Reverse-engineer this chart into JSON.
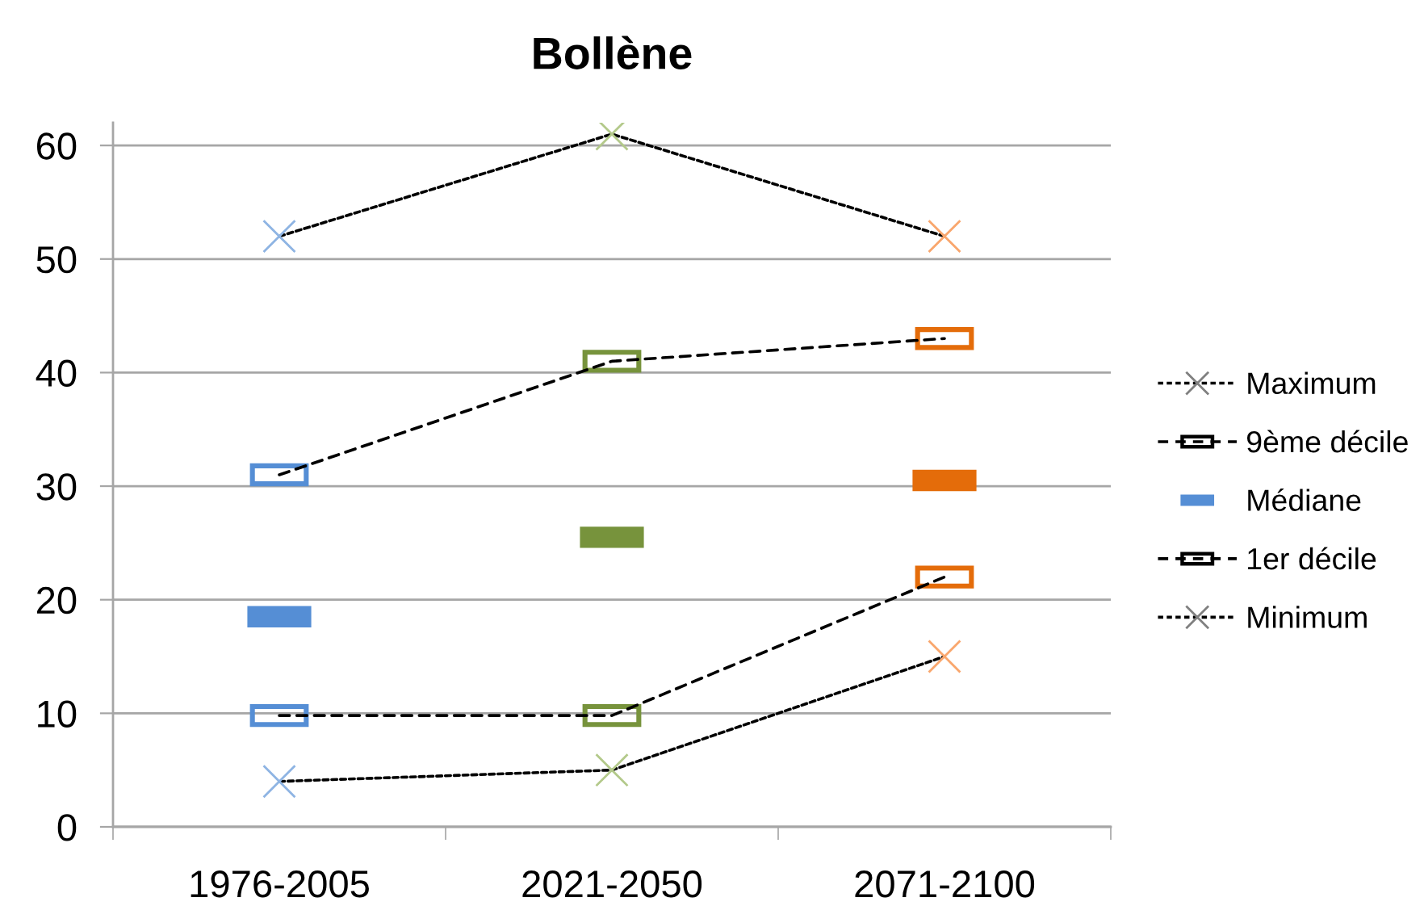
{
  "chart_data": {
    "type": "line",
    "title": "Bollène",
    "categories": [
      "1976-2005",
      "2021-2050",
      "2071-2100"
    ],
    "ylim": [
      0,
      62
    ],
    "yticks": [
      0,
      10,
      20,
      30,
      40,
      50,
      60
    ],
    "grid": "y",
    "legend": "right",
    "series": [
      {
        "name": "Maximum",
        "marker": "cross",
        "line_style": "dotted",
        "color": "#000000",
        "colors": [
          "#8eb4e3",
          "#b3c98a",
          "#f9a66c"
        ],
        "values": [
          52,
          61,
          52
        ]
      },
      {
        "name": "9ème décile",
        "marker": "square",
        "line_style": "dashed",
        "color": "#000000",
        "colors": [
          "#558ed5",
          "#77933c",
          "#e46c0a"
        ],
        "values": [
          31,
          41,
          43
        ]
      },
      {
        "name": "Médiane",
        "type": "scatter",
        "marker": "square",
        "color": "#558ed5",
        "colors": [
          "#558ed5",
          "#77933c",
          "#e46c0a"
        ],
        "values": [
          18.5,
          25.5,
          30.5
        ]
      },
      {
        "name": "1er décile",
        "marker": "square",
        "line_style": "dashed",
        "color": "#000000",
        "colors": [
          "#558ed5",
          "#77933c",
          "#e46c0a"
        ],
        "values": [
          9.8,
          9.8,
          22
        ]
      },
      {
        "name": "Minimum",
        "marker": "cross",
        "line_style": "dotted",
        "color": "#000000",
        "colors": [
          "#8eb4e3",
          "#b3c98a",
          "#f9a66c"
        ],
        "values": [
          4,
          5,
          15
        ]
      }
    ]
  }
}
